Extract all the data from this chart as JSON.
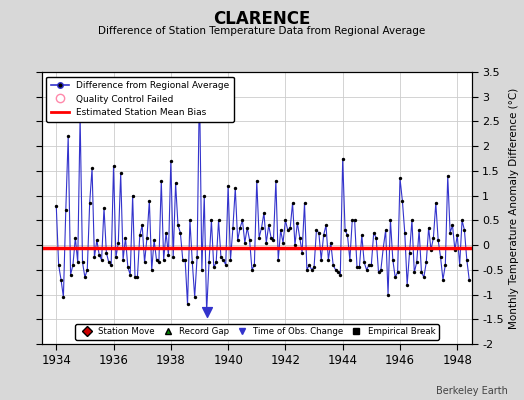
{
  "title": "CLARENCE",
  "subtitle": "Difference of Station Temperature Data from Regional Average",
  "ylabel_right": "Monthly Temperature Anomaly Difference (°C)",
  "xlim": [
    1933.5,
    1948.5
  ],
  "ylim": [
    -2.0,
    3.5
  ],
  "yticks": [
    -2,
    -1.5,
    -1,
    -0.5,
    0,
    0.5,
    1,
    1.5,
    2,
    2.5,
    3,
    3.5
  ],
  "xticks": [
    1934,
    1936,
    1938,
    1940,
    1942,
    1944,
    1946,
    1948
  ],
  "mean_bias": -0.05,
  "background_color": "#d8d8d8",
  "plot_bg_color": "#ffffff",
  "line_color": "#3333cc",
  "dot_color": "#000000",
  "bias_color": "#ff0000",
  "qc_fail_x": [
    1934.833
  ],
  "qc_fail_y": [
    2.6
  ],
  "time_obs_change_x": [
    1939.25
  ],
  "time_obs_change_y": [
    -1.35
  ],
  "data_x": [
    1934.0,
    1934.083,
    1934.167,
    1934.25,
    1934.333,
    1934.417,
    1934.5,
    1934.583,
    1934.667,
    1934.75,
    1934.833,
    1934.917,
    1935.0,
    1935.083,
    1935.167,
    1935.25,
    1935.333,
    1935.417,
    1935.5,
    1935.583,
    1935.667,
    1935.75,
    1935.833,
    1935.917,
    1936.0,
    1936.083,
    1936.167,
    1936.25,
    1936.333,
    1936.417,
    1936.5,
    1936.583,
    1936.667,
    1936.75,
    1936.833,
    1936.917,
    1937.0,
    1937.083,
    1937.167,
    1937.25,
    1937.333,
    1937.417,
    1937.5,
    1937.583,
    1937.667,
    1937.75,
    1937.833,
    1937.917,
    1938.0,
    1938.083,
    1938.167,
    1938.25,
    1938.333,
    1938.417,
    1938.5,
    1938.583,
    1938.667,
    1938.75,
    1938.833,
    1938.917,
    1939.0,
    1939.083,
    1939.167,
    1939.25,
    1939.333,
    1939.417,
    1939.5,
    1939.583,
    1939.667,
    1939.75,
    1939.833,
    1939.917,
    1940.0,
    1940.083,
    1940.167,
    1940.25,
    1940.333,
    1940.417,
    1940.5,
    1940.583,
    1940.667,
    1940.75,
    1940.833,
    1940.917,
    1941.0,
    1941.083,
    1941.167,
    1941.25,
    1941.333,
    1941.417,
    1941.5,
    1941.583,
    1941.667,
    1941.75,
    1941.833,
    1941.917,
    1942.0,
    1942.083,
    1942.167,
    1942.25,
    1942.333,
    1942.417,
    1942.5,
    1942.583,
    1942.667,
    1942.75,
    1942.833,
    1942.917,
    1943.0,
    1943.083,
    1943.167,
    1943.25,
    1943.333,
    1943.417,
    1943.5,
    1943.583,
    1943.667,
    1943.75,
    1943.833,
    1943.917,
    1944.0,
    1944.083,
    1944.167,
    1944.25,
    1944.333,
    1944.417,
    1944.5,
    1944.583,
    1944.667,
    1944.75,
    1944.833,
    1944.917,
    1945.0,
    1945.083,
    1945.167,
    1945.25,
    1945.333,
    1945.417,
    1945.5,
    1945.583,
    1945.667,
    1945.75,
    1945.833,
    1945.917,
    1946.0,
    1946.083,
    1946.167,
    1946.25,
    1946.333,
    1946.417,
    1946.5,
    1946.583,
    1946.667,
    1946.75,
    1946.833,
    1946.917,
    1947.0,
    1947.083,
    1947.167,
    1947.25,
    1947.333,
    1947.417,
    1947.5,
    1947.583,
    1947.667,
    1947.75,
    1947.833,
    1947.917,
    1948.0,
    1948.083,
    1948.167,
    1948.25,
    1948.333,
    1948.417
  ],
  "data_y": [
    0.8,
    -0.4,
    -0.7,
    -1.05,
    0.7,
    2.2,
    -0.6,
    -0.4,
    0.15,
    -0.35,
    2.6,
    -0.35,
    -0.65,
    -0.5,
    0.85,
    1.55,
    -0.25,
    0.1,
    -0.2,
    -0.3,
    0.75,
    -0.15,
    -0.35,
    -0.4,
    1.6,
    -0.25,
    0.05,
    1.45,
    -0.3,
    0.15,
    -0.45,
    -0.6,
    1.0,
    -0.65,
    -0.65,
    0.2,
    0.4,
    -0.35,
    0.15,
    0.9,
    -0.5,
    0.1,
    -0.3,
    -0.35,
    1.3,
    -0.3,
    0.25,
    -0.2,
    1.7,
    -0.25,
    1.25,
    0.4,
    0.25,
    -0.3,
    -0.3,
    -1.2,
    0.5,
    -0.35,
    -1.05,
    -0.25,
    3.3,
    -0.5,
    1.0,
    -1.35,
    -0.35,
    0.5,
    -0.45,
    -0.35,
    0.5,
    -0.25,
    -0.3,
    -0.4,
    1.2,
    -0.3,
    0.35,
    1.15,
    0.1,
    0.35,
    0.5,
    0.05,
    0.35,
    0.1,
    -0.5,
    -0.4,
    1.3,
    0.15,
    0.35,
    0.65,
    0.05,
    0.4,
    0.15,
    0.1,
    1.3,
    -0.3,
    0.3,
    0.05,
    0.5,
    0.3,
    0.35,
    0.85,
    0.0,
    0.45,
    0.15,
    -0.15,
    0.85,
    -0.5,
    -0.4,
    -0.5,
    -0.45,
    0.3,
    0.25,
    -0.3,
    0.2,
    0.4,
    -0.3,
    0.05,
    -0.4,
    -0.5,
    -0.55,
    -0.6,
    1.75,
    0.3,
    0.2,
    -0.3,
    0.5,
    0.5,
    -0.45,
    -0.45,
    0.2,
    -0.35,
    -0.5,
    -0.4,
    -0.4,
    0.25,
    0.15,
    -0.55,
    -0.5,
    -0.05,
    0.3,
    -1.0,
    0.5,
    -0.3,
    -0.65,
    -0.55,
    1.35,
    0.9,
    0.25,
    -0.8,
    -0.15,
    0.5,
    -0.55,
    -0.35,
    0.3,
    -0.55,
    -0.65,
    -0.35,
    0.35,
    -0.1,
    0.15,
    0.85,
    0.1,
    -0.25,
    -0.7,
    -0.4,
    1.4,
    0.25,
    0.4,
    -0.1,
    0.2,
    -0.4,
    0.5,
    0.3,
    -0.3,
    -0.7
  ],
  "watermark": "Berkeley Earth"
}
